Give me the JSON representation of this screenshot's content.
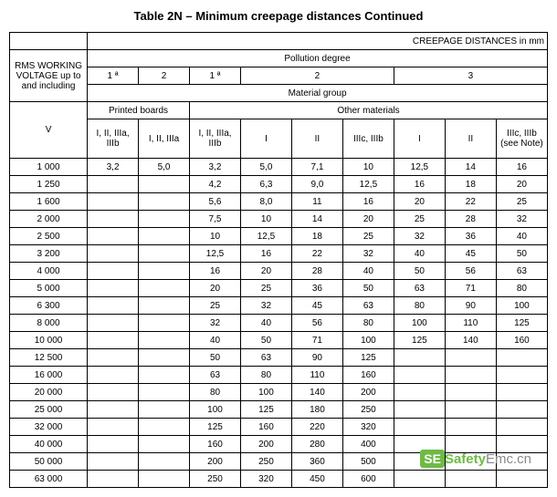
{
  "title": "Table 2N – Minimum creepage distances Continued",
  "headers": {
    "main_right": "CREEPAGE DISTANCES in mm",
    "rms": "RMS WORKING VOLTAGE up to and including",
    "v": "V",
    "pollution": "Pollution degree",
    "pd1a": "1 ª",
    "pd2": "2",
    "pd1a_b": "1 ª",
    "pd2_b": "2",
    "pd3": "3",
    "material": "Material group",
    "printed": "Printed boards",
    "other": "Other materials",
    "col1": "I, II, IIIa, IIIb",
    "col2": "I, II, IIIa",
    "col3": "I, II, IIIa, IIIb",
    "col4": "I",
    "col5": "II",
    "col6": "IIIc, IIIb",
    "col7": "I",
    "col8": "II",
    "col9": "IIIc, IIIb (see Note)"
  },
  "rows": [
    {
      "v": "1 000",
      "c": [
        "3,2",
        "5,0",
        "3,2",
        "5,0",
        "7,1",
        "10",
        "12,5",
        "14",
        "16"
      ]
    },
    {
      "v": "1 250",
      "c": [
        "",
        "",
        "4,2",
        "6,3",
        "9,0",
        "12,5",
        "16",
        "18",
        "20"
      ]
    },
    {
      "v": "1 600",
      "c": [
        "",
        "",
        "5,6",
        "8,0",
        "11",
        "16",
        "20",
        "22",
        "25"
      ]
    },
    {
      "v": "2 000",
      "c": [
        "",
        "",
        "7,5",
        "10",
        "14",
        "20",
        "25",
        "28",
        "32"
      ]
    },
    {
      "v": "2 500",
      "c": [
        "",
        "",
        "10",
        "12,5",
        "18",
        "25",
        "32",
        "36",
        "40"
      ]
    },
    {
      "v": "3 200",
      "c": [
        "",
        "",
        "12,5",
        "16",
        "22",
        "32",
        "40",
        "45",
        "50"
      ]
    },
    {
      "v": "4 000",
      "c": [
        "",
        "",
        "16",
        "20",
        "28",
        "40",
        "50",
        "56",
        "63"
      ]
    },
    {
      "v": "5 000",
      "c": [
        "",
        "",
        "20",
        "25",
        "36",
        "50",
        "63",
        "71",
        "80"
      ]
    },
    {
      "v": "6 300",
      "c": [
        "",
        "",
        "25",
        "32",
        "45",
        "63",
        "80",
        "90",
        "100"
      ]
    },
    {
      "v": "8 000",
      "c": [
        "",
        "",
        "32",
        "40",
        "56",
        "80",
        "100",
        "110",
        "125"
      ]
    },
    {
      "v": "10 000",
      "c": [
        "",
        "",
        "40",
        "50",
        "71",
        "100",
        "125",
        "140",
        "160"
      ]
    },
    {
      "v": "12 500",
      "c": [
        "",
        "",
        "50",
        "63",
        "90",
        "125",
        "",
        "",
        ""
      ]
    },
    {
      "v": "16 000",
      "c": [
        "",
        "",
        "63",
        "80",
        "110",
        "160",
        "",
        "",
        ""
      ]
    },
    {
      "v": "20 000",
      "c": [
        "",
        "",
        "80",
        "100",
        "140",
        "200",
        "",
        "",
        ""
      ]
    },
    {
      "v": "25 000",
      "c": [
        "",
        "",
        "100",
        "125",
        "180",
        "250",
        "",
        "",
        ""
      ]
    },
    {
      "v": "32 000",
      "c": [
        "",
        "",
        "125",
        "160",
        "220",
        "320",
        "",
        "",
        ""
      ]
    },
    {
      "v": "40 000",
      "c": [
        "",
        "",
        "160",
        "200",
        "280",
        "400",
        "",
        "",
        ""
      ]
    },
    {
      "v": "50 000",
      "c": [
        "",
        "",
        "200",
        "250",
        "360",
        "500",
        "",
        "",
        ""
      ]
    },
    {
      "v": "63 000",
      "c": [
        "",
        "",
        "250",
        "320",
        "450",
        "600",
        "",
        "",
        ""
      ]
    }
  ],
  "watermark": {
    "se": "SE",
    "t1": "Safety",
    "t2": "Emc.cn"
  }
}
